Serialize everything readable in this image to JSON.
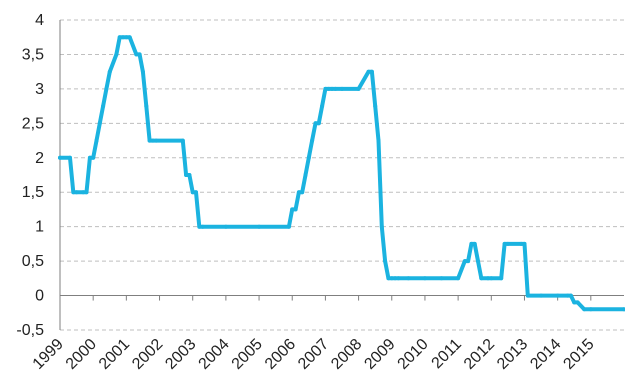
{
  "chart_data": {
    "type": "line",
    "title": "",
    "xlabel": "",
    "ylabel": "",
    "xlim": [
      1999.0,
      2016.0
    ],
    "ylim": [
      -0.5,
      4
    ],
    "grid": true,
    "legend": "none",
    "colors": {
      "line": "#1bb3e0",
      "grid": "#bfbfbf",
      "axis": "#7f7f7f",
      "text": "#222222"
    },
    "y_ticks": [
      {
        "value": -0.5,
        "label": "-0,5"
      },
      {
        "value": 0,
        "label": "0"
      },
      {
        "value": 0.5,
        "label": "0,5"
      },
      {
        "value": 1,
        "label": "1"
      },
      {
        "value": 1.5,
        "label": "1,5"
      },
      {
        "value": 2,
        "label": "2"
      },
      {
        "value": 2.5,
        "label": "2,5"
      },
      {
        "value": 3,
        "label": "3"
      },
      {
        "value": 3.5,
        "label": "3,5"
      },
      {
        "value": 4,
        "label": "4"
      }
    ],
    "x_ticks": [
      {
        "value": 1999,
        "label": "1999"
      },
      {
        "value": 2000,
        "label": "2000"
      },
      {
        "value": 2001,
        "label": "2001"
      },
      {
        "value": 2002,
        "label": "2002"
      },
      {
        "value": 2003,
        "label": "2003"
      },
      {
        "value": 2004,
        "label": "2004"
      },
      {
        "value": 2005,
        "label": "2005"
      },
      {
        "value": 2006,
        "label": "2006"
      },
      {
        "value": 2007,
        "label": "2007"
      },
      {
        "value": 2008,
        "label": "2008"
      },
      {
        "value": 2009,
        "label": "2009"
      },
      {
        "value": 2010,
        "label": "2010"
      },
      {
        "value": 2011,
        "label": "2011"
      },
      {
        "value": 2012,
        "label": "2012"
      },
      {
        "value": 2013,
        "label": "2013"
      },
      {
        "value": 2014,
        "label": "2014"
      },
      {
        "value": 2015,
        "label": "2015"
      }
    ],
    "series": [
      {
        "x": [
          1999.0,
          1999.3,
          1999.4,
          1999.5,
          1999.7,
          1999.8,
          1999.9,
          2000.0,
          2000.1,
          2000.2,
          2000.3,
          2000.4,
          2000.5,
          2000.7,
          2000.8,
          2000.9,
          2001.0,
          2001.1,
          2001.3,
          2001.4,
          2001.5,
          2001.6,
          2001.7,
          2001.8,
          2001.9,
          2002.7,
          2002.8,
          2002.9,
          2003.0,
          2003.1,
          2003.2,
          2003.3,
          2004.0,
          2005.0,
          2005.9,
          2006.0,
          2006.1,
          2006.2,
          2006.3,
          2006.4,
          2006.5,
          2006.6,
          2006.7,
          2006.8,
          2006.9,
          2007.0,
          2007.1,
          2007.2,
          2007.3,
          2007.5,
          2008.0,
          2008.3,
          2008.4,
          2008.5,
          2008.6,
          2008.7,
          2008.8,
          2008.9,
          2009.0,
          2009.1,
          2009.2,
          2009.5,
          2010.0,
          2010.5,
          2011.0,
          2011.2,
          2011.3,
          2011.4,
          2011.5,
          2011.6,
          2011.7,
          2011.9,
          2012.0,
          2012.3,
          2012.4,
          2012.5,
          2012.9,
          2013.0,
          2013.1,
          2013.5,
          2014.0,
          2014.3,
          2014.4,
          2014.5,
          2014.6,
          2014.8,
          2015.0,
          2016.0
        ],
        "values": [
          2.0,
          2.0,
          1.5,
          1.5,
          1.5,
          1.5,
          2.0,
          2.0,
          2.25,
          2.5,
          2.75,
          3.0,
          3.25,
          3.5,
          3.75,
          3.75,
          3.75,
          3.75,
          3.5,
          3.5,
          3.25,
          2.75,
          2.25,
          2.25,
          2.25,
          2.25,
          1.75,
          1.75,
          1.5,
          1.5,
          1.0,
          1.0,
          1.0,
          1.0,
          1.0,
          1.25,
          1.25,
          1.5,
          1.5,
          1.75,
          2.0,
          2.25,
          2.5,
          2.5,
          2.75,
          3.0,
          3.0,
          3.0,
          3.0,
          3.0,
          3.0,
          3.25,
          3.25,
          2.75,
          2.25,
          1.0,
          0.5,
          0.25,
          0.25,
          0.25,
          0.25,
          0.25,
          0.25,
          0.25,
          0.25,
          0.5,
          0.5,
          0.75,
          0.75,
          0.5,
          0.25,
          0.25,
          0.25,
          0.25,
          0.75,
          0.75,
          0.75,
          0.75,
          0.0,
          0.0,
          0.0,
          0.0,
          0.0,
          -0.1,
          -0.1,
          -0.2,
          -0.2,
          -0.2
        ]
      }
    ]
  }
}
